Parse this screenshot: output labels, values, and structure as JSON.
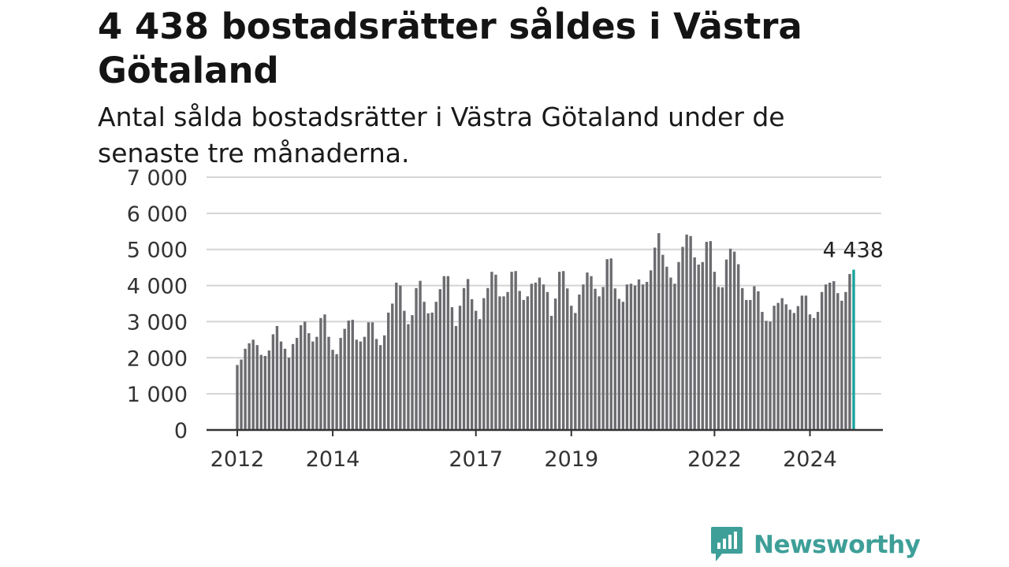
{
  "header": {
    "title": "4 438 bostadsrätter såldes i Västra Götaland",
    "subtitle": "Antal sålda bostadsrätter i Västra Götaland under de senaste tre månaderna."
  },
  "brand": {
    "name": "Newsworthy",
    "icon": "newsworthy-logo-icon",
    "color": "#3e9f98"
  },
  "chart_data": {
    "type": "bar",
    "title": "",
    "xlabel": "",
    "ylabel": "",
    "ylim": [
      0,
      7000
    ],
    "yticks": [
      0,
      1000,
      2000,
      3000,
      4000,
      5000,
      6000,
      7000
    ],
    "ytick_labels": [
      "0",
      "1 000",
      "2 000",
      "3 000",
      "4 000",
      "5 000",
      "6 000",
      "7 000"
    ],
    "xticks": [
      {
        "label": "2012",
        "index": 0
      },
      {
        "label": "2014",
        "index": 24
      },
      {
        "label": "2017",
        "index": 60
      },
      {
        "label": "2019",
        "index": 84
      },
      {
        "label": "2022",
        "index": 120
      },
      {
        "label": "2024",
        "index": 144
      }
    ],
    "grid": true,
    "bar_color": "#6c6c70",
    "highlight_color": "#1aa39a",
    "highlight_label": "4 438",
    "start": "2012-01",
    "values": [
      1800,
      1950,
      2250,
      2400,
      2500,
      2350,
      2080,
      2050,
      2200,
      2650,
      2880,
      2450,
      2250,
      2000,
      2380,
      2550,
      2900,
      3000,
      2680,
      2450,
      2580,
      3100,
      3200,
      2580,
      2220,
      2100,
      2550,
      2800,
      3030,
      3050,
      2500,
      2450,
      2580,
      2980,
      2980,
      2520,
      2350,
      2620,
      3250,
      3500,
      4080,
      4000,
      3300,
      2930,
      3180,
      3930,
      4130,
      3550,
      3230,
      3250,
      3550,
      3900,
      4260,
      4260,
      3400,
      2880,
      3440,
      3930,
      4180,
      3620,
      3300,
      3070,
      3650,
      3930,
      4380,
      4300,
      3700,
      3700,
      3820,
      4380,
      4400,
      3850,
      3600,
      3700,
      4050,
      4080,
      4220,
      4030,
      3820,
      3160,
      3640,
      4380,
      4400,
      3920,
      3440,
      3240,
      3750,
      4030,
      4360,
      4260,
      3910,
      3700,
      3960,
      4730,
      4750,
      3920,
      3630,
      3550,
      4030,
      4050,
      4000,
      4170,
      4030,
      4100,
      4420,
      5050,
      5450,
      4850,
      4520,
      4220,
      4050,
      4650,
      5070,
      5410,
      5370,
      4780,
      4580,
      4650,
      5210,
      5230,
      4380,
      3960,
      3950,
      4720,
      5020,
      4940,
      4590,
      3930,
      3600,
      3600,
      3980,
      3840,
      3270,
      3020,
      3000,
      3440,
      3520,
      3650,
      3480,
      3330,
      3240,
      3430,
      3720,
      3720,
      3200,
      3100,
      3270,
      3820,
      4030,
      4080,
      4120,
      3790,
      3580,
      3820,
      4320,
      4438
    ]
  }
}
